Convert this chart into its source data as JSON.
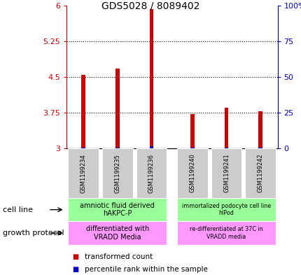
{
  "title": "GDS5028 / 8089402",
  "samples": [
    "GSM1199234",
    "GSM1199235",
    "GSM1199236",
    "GSM1199240",
    "GSM1199241",
    "GSM1199242"
  ],
  "red_values": [
    4.55,
    4.67,
    5.93,
    3.72,
    3.85,
    3.78
  ],
  "blue_values": [
    3.02,
    3.02,
    3.05,
    3.02,
    3.02,
    3.02
  ],
  "ylim_left": [
    3,
    6
  ],
  "ylim_right": [
    0,
    100
  ],
  "left_ticks": [
    3,
    3.75,
    4.5,
    5.25,
    6
  ],
  "right_ticks": [
    0,
    25,
    50,
    75,
    100
  ],
  "right_tick_labels": [
    "0",
    "25",
    "50",
    "75",
    "100%"
  ],
  "left_color": "#cc0000",
  "right_color": "#0000cc",
  "bar_width": 0.12,
  "x_positions": [
    0,
    1,
    2,
    3.2,
    4.2,
    5.2
  ],
  "xlim": [
    -0.5,
    5.7
  ],
  "cell_line_group1": "amniotic fluid derived\nhAKPC-P",
  "cell_line_group2": "immortalized podocyte cell line\nhIPod",
  "growth_group1": "differentiated with\nVRADD Media",
  "growth_group2": "re-differentiated at 37C in\nVRADD media",
  "cell_line_color": "#99ff99",
  "growth_color": "#ff99ff",
  "label_cell_line": "cell line",
  "label_growth": "growth protocol",
  "legend_red": "transformed count",
  "legend_blue": "percentile rank within the sample",
  "sample_bg_color": "#cccccc",
  "plot_bg_color": "#ffffff",
  "grid_color": "#000000",
  "group1_end_idx": 2,
  "group2_start_idx": 3
}
